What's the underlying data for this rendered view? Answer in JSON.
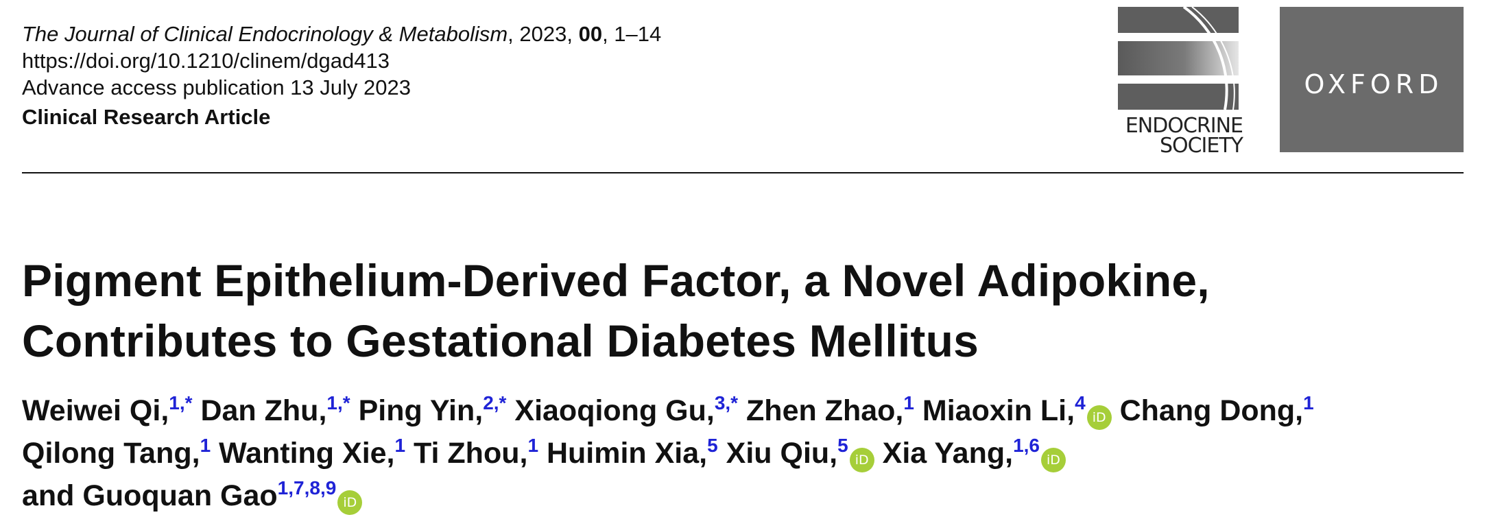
{
  "header": {
    "journal_name": "The Journal of Clinical Endocrinology & Metabolism",
    "year_text": ", 2023, ",
    "volume": "00",
    "pages_text": ", 1–14",
    "doi": "https://doi.org/10.1210/clinem/dgad413",
    "advance_access": "Advance access publication 13 July 2023",
    "article_type": "Clinical Research Article"
  },
  "logos": {
    "endocrine_society_line1": "ENDOCRINE",
    "endocrine_society_line2": "SOCIETY",
    "oxford": "OXFORD"
  },
  "title": {
    "line1": "Pigment Epithelium-Derived Factor, a Novel Adipokine,",
    "line2": "Contributes to Gestational Diabetes Mellitus"
  },
  "authors": [
    {
      "name": "Weiwei Qi,",
      "aff": "1,*",
      "orcid": false
    },
    {
      "name": "Dan Zhu,",
      "aff": "1,*",
      "orcid": false
    },
    {
      "name": "Ping Yin,",
      "aff": "2,*",
      "orcid": false
    },
    {
      "name": "Xiaoqiong Gu,",
      "aff": "3,*",
      "orcid": false
    },
    {
      "name": "Zhen Zhao,",
      "aff": "1",
      "orcid": false
    },
    {
      "name": "Miaoxin Li,",
      "aff": "4",
      "orcid": true
    },
    {
      "name": "Chang Dong,",
      "aff": "1",
      "orcid": false
    },
    {
      "name": "Qilong Tang,",
      "aff": "1",
      "orcid": false
    },
    {
      "name": "Wanting Xie,",
      "aff": "1",
      "orcid": false
    },
    {
      "name": "Ti Zhou,",
      "aff": "1",
      "orcid": false
    },
    {
      "name": "Huimin Xia,",
      "aff": "5",
      "orcid": false
    },
    {
      "name": "Xiu Qiu,",
      "aff": "5",
      "orcid": true
    },
    {
      "name": "Xia Yang,",
      "aff": "1,6",
      "orcid": true
    },
    {
      "name": "and Guoquan Gao",
      "aff": "1,7,8,9",
      "orcid": true
    }
  ],
  "orcid_icon_text": "iD",
  "colors": {
    "affiliation": "#1f23d6",
    "orcid": "#a6ce39",
    "oxford_box": "#6b6b6b"
  }
}
